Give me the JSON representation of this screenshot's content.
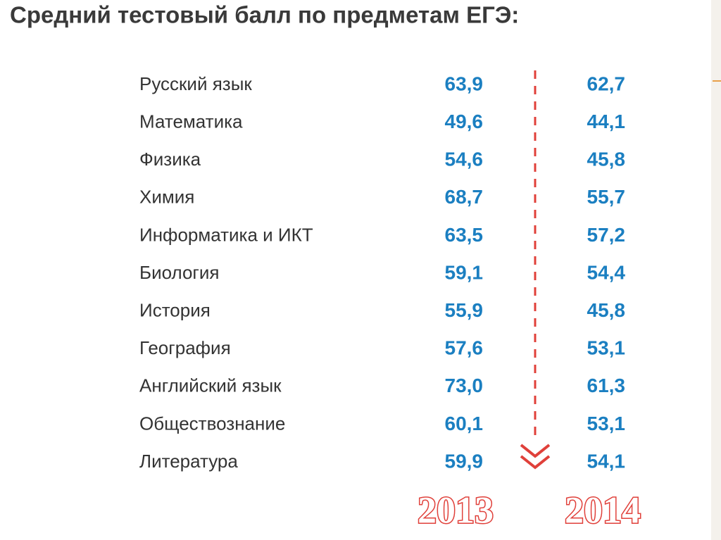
{
  "header": {
    "title": "Средний тестовый балл по предметам ЕГЭ:"
  },
  "table": {
    "columns": [
      "2013",
      "2014"
    ],
    "rows": [
      [
        "Русский язык",
        "63,9",
        "62,7"
      ],
      [
        "Математика",
        "49,6",
        "44,1"
      ],
      [
        "Физика",
        "54,6",
        "45,8"
      ],
      [
        "Химия",
        "68,7",
        "55,7"
      ],
      [
        "Информатика и ИКТ",
        "63,5",
        "57,2"
      ],
      [
        "Биология",
        "59,1",
        "54,4"
      ],
      [
        "История",
        "55,9",
        "45,8"
      ],
      [
        "География",
        "57,6",
        "53,1"
      ],
      [
        "Английский язык",
        "73,0",
        "61,3"
      ],
      [
        "Обществознание",
        "60,1",
        "53,1"
      ],
      [
        "Литература",
        "59,9",
        "54,1"
      ]
    ]
  }
}
